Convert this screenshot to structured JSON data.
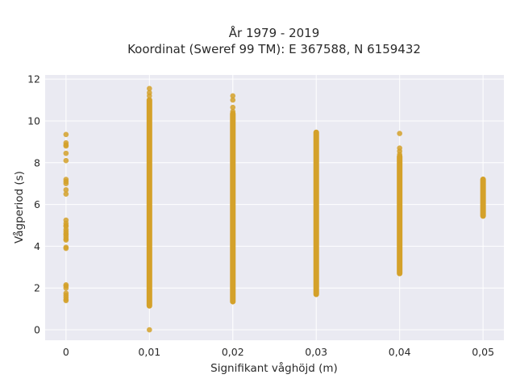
{
  "chart_data": {
    "type": "scatter",
    "title": "År 1979 - 2019",
    "subtitle": "Koordinat (Sweref 99 TM): E 367588, N 6159432",
    "xlabel": "Signifikant våghöjd (m)",
    "ylabel": "Vågperiod (s)",
    "xlim": [
      -0.0025,
      0.0525
    ],
    "ylim": [
      -0.5,
      12.2
    ],
    "x_ticks": [
      0,
      0.01,
      0.02,
      0.03,
      0.04,
      0.05
    ],
    "x_tick_labels": [
      "0",
      "0,01",
      "0,02",
      "0,03",
      "0,04",
      "0,05"
    ],
    "y_ticks": [
      0,
      2,
      4,
      6,
      8,
      10,
      12
    ],
    "y_tick_labels": [
      "0",
      "2",
      "4",
      "6",
      "8",
      "10",
      "12"
    ],
    "grid": true,
    "colors": {
      "marker": "#d4a12a",
      "plot_bg": "#eaeaf2",
      "grid": "#ffffff"
    },
    "series": [
      {
        "groups": [
          {
            "x": 0,
            "points": [
              9.35,
              8.95,
              8.85,
              8.8,
              8.45,
              8.1,
              7.2,
              7.1,
              7.0,
              6.7,
              6.5,
              5.25,
              5.1,
              5.0,
              4.95,
              4.8,
              4.7,
              4.6,
              4.55,
              4.45,
              4.35,
              4.3,
              3.95,
              3.9,
              2.15,
              2.1,
              2.0,
              1.75,
              1.65,
              1.55,
              1.45,
              1.4
            ],
            "range": null
          },
          {
            "x": 0.01,
            "points": [
              11.55,
              11.35,
              11.2,
              0.0
            ],
            "range": [
              1.15,
              11.0
            ]
          },
          {
            "x": 0.02,
            "points": [
              11.2,
              11.0,
              10.65,
              10.45
            ],
            "range": [
              1.35,
              10.35
            ]
          },
          {
            "x": 0.03,
            "points": [],
            "range": [
              1.7,
              9.45
            ]
          },
          {
            "x": 0.04,
            "points": [
              9.4,
              8.7,
              8.55,
              8.4
            ],
            "range": [
              2.7,
              8.3
            ]
          },
          {
            "x": 0.05,
            "points": [],
            "range": [
              5.45,
              7.2
            ]
          }
        ]
      }
    ]
  }
}
